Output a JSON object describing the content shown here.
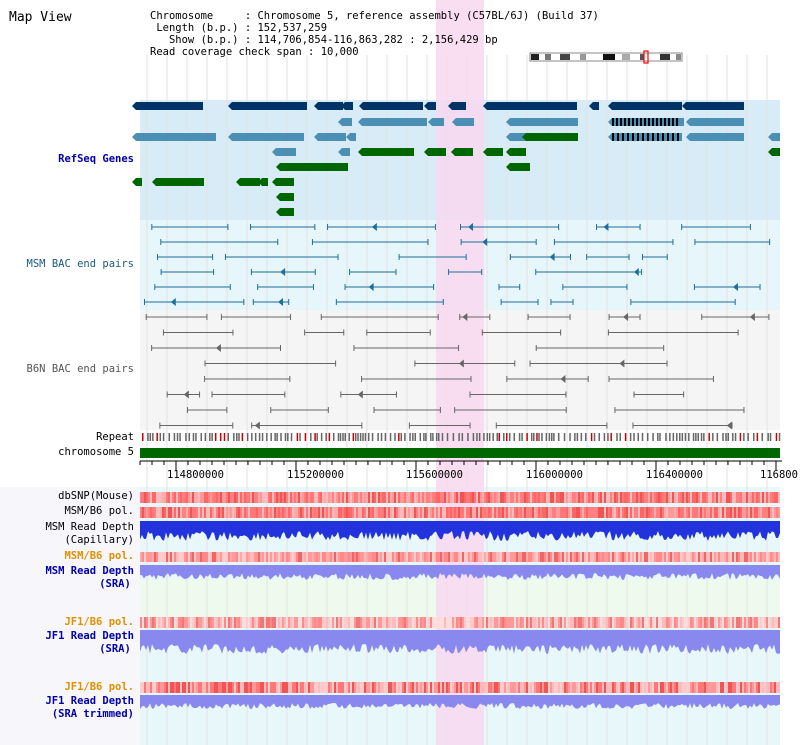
{
  "title": "Map View",
  "info": {
    "chromosome_label": "Chromosome",
    "chromosome_value": "Chromosome 5, reference assembly (C57BL/6J) (Build 37)",
    "length_label": "Length (b.p.)",
    "length_value": "152,537,259",
    "show_label": "Show (b.p.)",
    "show_value": "114,706,854-116,863,282 : 2,156,429 bp",
    "read_span_label": "Read coverage check span",
    "read_span_value": "10,000"
  },
  "tracks": {
    "refseq": "RefSeq Genes",
    "msm_bac": "MSM BAC end pairs",
    "b6n_bac": "B6N BAC end pairs",
    "repeat": "Repeat",
    "chromosome": "chromosome 5",
    "dbsnp": "dbSNP(Mouse)",
    "msm_b6_pol_1": "MSM/B6 pol.",
    "msm_read_depth_cap_1": "MSM Read Depth",
    "msm_read_depth_cap_2": "(Capillary)",
    "msm_b6_pol_2": "MSM/B6 pol.",
    "msm_read_depth_sra_1": "MSM Read Depth",
    "msm_read_depth_sra_2": "(SRA)",
    "jf1_b6_pol_1": "JF1/B6 pol.",
    "jf1_read_depth_sra_1": "JF1 Read Depth",
    "jf1_read_depth_sra_2": "(SRA)",
    "jf1_b6_pol_2": "JF1/B6 pol.",
    "jf1_read_depth_trim_1": "JF1 Read Depth",
    "jf1_read_depth_trim_2": "(SRA trimmed)"
  },
  "axis": {
    "ticks": [
      "114800000",
      "115200000",
      "115600000",
      "116000000",
      "116400000",
      "116800"
    ]
  },
  "colors": {
    "refseq_dark": "#003366",
    "refseq_light": "#4c8fb5",
    "refseq_green": "#006600",
    "msm_bac": "#1f6f9a",
    "b6n_bac": "#666666",
    "highlight": "#f8d8f0",
    "label_blue": "#0000aa",
    "label_orange": "#e09000",
    "label_teal": "#1a5a80"
  }
}
